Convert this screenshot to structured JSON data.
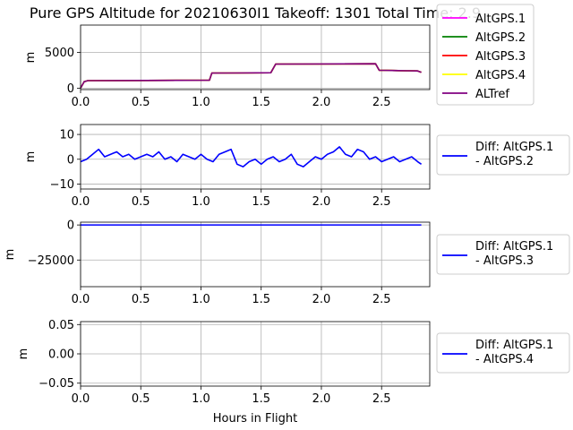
{
  "figure": {
    "title": "Pure GPS Altitude for 20210630I1 Takeoff: 1301 Total Time: 2.9",
    "xlabel": "Hours in Flight"
  },
  "chart_data": [
    {
      "type": "line",
      "ylabel": "m",
      "xlim": [
        0,
        2.9
      ],
      "ylim": [
        -200,
        8800
      ],
      "xticks": [
        "0.0",
        "0.5",
        "1.0",
        "1.5",
        "2.0",
        "2.5"
      ],
      "xtick_values": [
        0,
        0.5,
        1.0,
        1.5,
        2.0,
        2.5
      ],
      "yticks": [
        "0",
        "5000"
      ],
      "ytick_values": [
        0,
        5000
      ],
      "grid": true,
      "legend_position": "outside-right",
      "series": [
        {
          "name": "AltGPS.1",
          "color": "#ff00ff",
          "x": [
            0,
            0.03,
            0.06,
            1.07,
            1.09,
            1.58,
            1.62,
            2.45,
            2.48,
            2.8,
            2.83
          ],
          "y": [
            0,
            900,
            1050,
            1100,
            2100,
            2150,
            3350,
            3400,
            2500,
            2400,
            2200
          ]
        },
        {
          "name": "AltGPS.2",
          "color": "#008000",
          "x": [
            0,
            0.03,
            0.06,
            1.07,
            1.09,
            1.58,
            1.62,
            2.45,
            2.48,
            2.8,
            2.83
          ],
          "y": [
            0,
            900,
            1050,
            1100,
            2100,
            2150,
            3350,
            3400,
            2500,
            2400,
            2200
          ]
        },
        {
          "name": "AltGPS.3",
          "color": "#ff0000",
          "x": [
            0,
            0.03,
            0.06,
            1.07,
            1.09,
            1.58,
            1.62,
            2.45,
            2.48,
            2.8,
            2.83
          ],
          "y": [
            0,
            900,
            1050,
            1100,
            2100,
            2150,
            3350,
            3400,
            2500,
            2400,
            2200
          ]
        },
        {
          "name": "AltGPS.4",
          "color": "#ffff00",
          "x": [
            0,
            0.03,
            0.06,
            1.07,
            1.09,
            1.58,
            1.62,
            2.45,
            2.48,
            2.8,
            2.83
          ],
          "y": [
            0,
            900,
            1050,
            1100,
            2100,
            2150,
            3350,
            3400,
            2500,
            2400,
            2200
          ]
        },
        {
          "name": "ALTref",
          "color": "#800080",
          "x": [
            0,
            0.03,
            0.06,
            1.07,
            1.09,
            1.58,
            1.62,
            2.45,
            2.48,
            2.8,
            2.83
          ],
          "y": [
            0,
            900,
            1050,
            1100,
            2100,
            2150,
            3350,
            3400,
            2500,
            2400,
            2200
          ]
        }
      ]
    },
    {
      "type": "line",
      "ylabel": "m",
      "xlim": [
        0,
        2.9
      ],
      "ylim": [
        -12,
        14
      ],
      "xticks": [
        "0.0",
        "0.5",
        "1.0",
        "1.5",
        "2.0",
        "2.5"
      ],
      "xtick_values": [
        0,
        0.5,
        1.0,
        1.5,
        2.0,
        2.5
      ],
      "yticks": [
        "10",
        "0",
        "−10"
      ],
      "ytick_values": [
        10,
        0,
        -10
      ],
      "grid": true,
      "legend_position": "outside-right",
      "series": [
        {
          "name": "Diff: AltGPS.1 - AltGPS.2",
          "color": "#0000ff",
          "x": [
            0,
            0.05,
            0.1,
            0.15,
            0.2,
            0.25,
            0.3,
            0.35,
            0.4,
            0.45,
            0.5,
            0.55,
            0.6,
            0.65,
            0.7,
            0.75,
            0.8,
            0.85,
            0.9,
            0.95,
            1.0,
            1.05,
            1.1,
            1.15,
            1.2,
            1.25,
            1.3,
            1.35,
            1.4,
            1.45,
            1.5,
            1.55,
            1.6,
            1.65,
            1.7,
            1.75,
            1.8,
            1.85,
            1.9,
            1.95,
            2.0,
            2.05,
            2.1,
            2.15,
            2.2,
            2.25,
            2.3,
            2.35,
            2.4,
            2.45,
            2.5,
            2.55,
            2.6,
            2.65,
            2.7,
            2.75,
            2.8,
            2.83
          ],
          "y": [
            -1,
            0,
            2,
            4,
            1,
            2,
            3,
            1,
            2,
            0,
            1,
            2,
            1,
            3,
            0,
            1,
            -1,
            2,
            1,
            0,
            2,
            0,
            -1,
            2,
            3,
            4,
            -2,
            -3,
            -1,
            0,
            -2,
            0,
            1,
            -1,
            0,
            2,
            -2,
            -3,
            -1,
            1,
            0,
            2,
            3,
            5,
            2,
            1,
            4,
            3,
            0,
            1,
            -1,
            0,
            1,
            -1,
            0,
            1,
            -1,
            -2
          ]
        }
      ]
    },
    {
      "type": "line",
      "ylabel": "m",
      "xlim": [
        0,
        2.9
      ],
      "ylim": [
        -44000,
        2000
      ],
      "xticks": [
        "0.0",
        "0.5",
        "1.0",
        "1.5",
        "2.0",
        "2.5"
      ],
      "xtick_values": [
        0,
        0.5,
        1.0,
        1.5,
        2.0,
        2.5
      ],
      "yticks": [
        "0",
        "−25000"
      ],
      "ytick_values": [
        0,
        -25000
      ],
      "grid": true,
      "legend_position": "outside-right",
      "series": [
        {
          "name": "Diff: AltGPS.1 - AltGPS.3",
          "color": "#0000ff",
          "x": [
            0,
            2.83
          ],
          "y": [
            0,
            0
          ]
        }
      ]
    },
    {
      "type": "line",
      "ylabel": "m",
      "xlim": [
        0,
        2.9
      ],
      "ylim": [
        -0.055,
        0.055
      ],
      "xticks": [
        "0.0",
        "0.5",
        "1.0",
        "1.5",
        "2.0",
        "2.5"
      ],
      "xtick_values": [
        0,
        0.5,
        1.0,
        1.5,
        2.0,
        2.5
      ],
      "yticks": [
        "0.05",
        "0.00",
        "−0.05"
      ],
      "ytick_values": [
        0.05,
        0.0,
        -0.05
      ],
      "grid": true,
      "legend_position": "outside-right",
      "series": [
        {
          "name": "Diff: AltGPS.1 - AltGPS.4",
          "color": "#0000ff",
          "x": [],
          "y": []
        }
      ]
    }
  ]
}
